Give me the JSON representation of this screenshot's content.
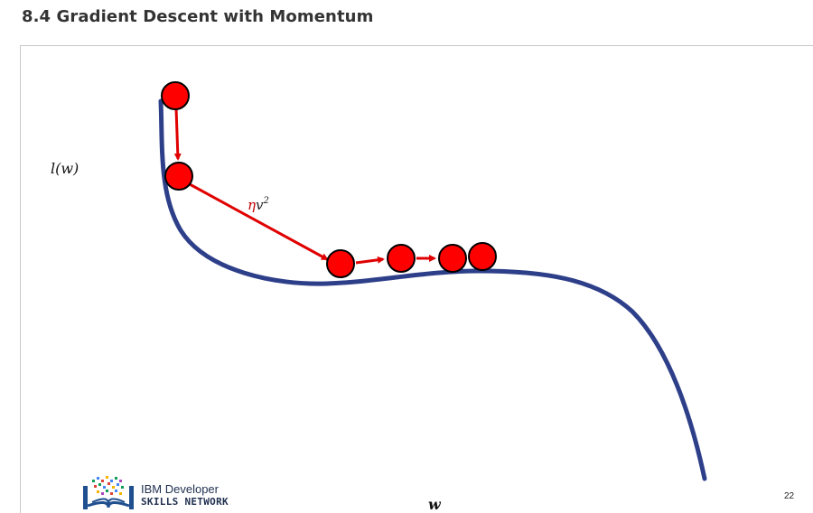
{
  "page": {
    "title": "8.4 Gradient Descent with Momentum"
  },
  "diagram": {
    "y_axis_label": "l(w)",
    "x_axis_label": "w",
    "momentum_label_eta": "η",
    "momentum_label_v": "v",
    "momentum_label_exp": "2",
    "colors": {
      "curve": "#2e3f8a",
      "ball": "#ff0000",
      "ball_outline": "#000000",
      "arrow": "#e00000",
      "label": "#c00000"
    }
  },
  "footer": {
    "logo_line_1": "IBM Developer",
    "logo_line_2": "SKILLS NETWORK",
    "slide_number": "22"
  }
}
